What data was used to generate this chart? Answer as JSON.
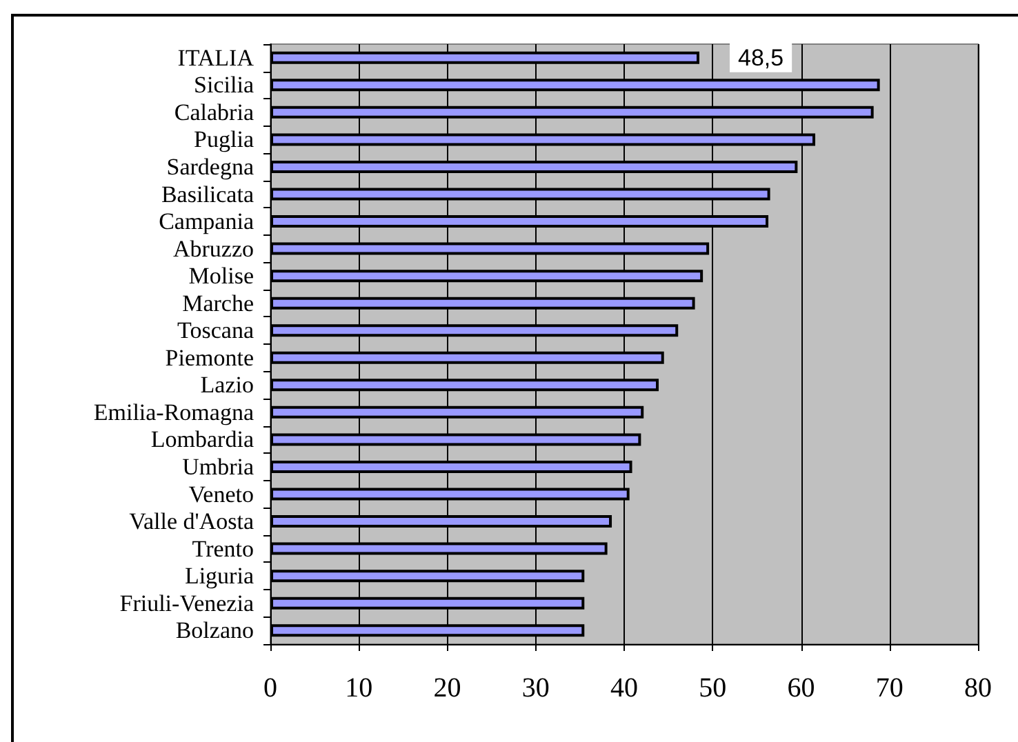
{
  "chart_data": {
    "type": "bar",
    "orientation": "horizontal",
    "categories": [
      "ITALIA",
      "Sicilia",
      "Calabria",
      "Puglia",
      "Sardegna",
      "Basilicata",
      "Campania",
      "Abruzzo",
      "Molise",
      "Marche",
      "Toscana",
      "Piemonte",
      "Lazio",
      "Emilia-Romagna",
      "Lombardia",
      "Umbria",
      "Veneto",
      "Valle d'Aosta",
      "Trento",
      "Liguria",
      "Friuli-Venezia",
      "Bolzano"
    ],
    "values": [
      48.5,
      68.9,
      68.2,
      61.6,
      59.6,
      56.5,
      56.3,
      49.6,
      48.9,
      48.0,
      46.1,
      44.5,
      43.9,
      42.2,
      41.9,
      40.9,
      40.6,
      38.6,
      38.1,
      35.5,
      35.5,
      35.5
    ],
    "value_labels": [
      "48,5",
      null,
      null,
      null,
      null,
      null,
      null,
      null,
      null,
      null,
      null,
      null,
      null,
      null,
      null,
      null,
      null,
      null,
      null,
      null,
      null,
      null
    ],
    "color": "#9999ff",
    "xlim": [
      0,
      80
    ],
    "xticks": [
      0,
      10,
      20,
      30,
      40,
      50,
      60,
      70,
      80
    ],
    "grid": "x"
  }
}
